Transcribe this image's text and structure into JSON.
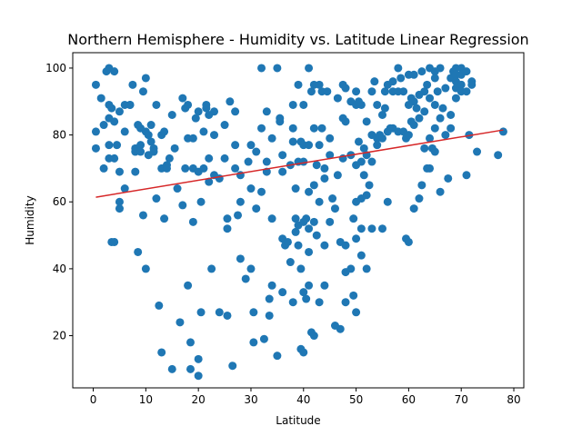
{
  "chart_data": {
    "type": "scatter",
    "title": "Northern Hemisphere - Humidity vs. Latitude Linear Regression",
    "xlabel": "Latitude",
    "ylabel": "Humidity",
    "xlim": [
      -3.9,
      81.9
    ],
    "ylim": [
      4.4,
      104.6
    ],
    "xticks": [
      0,
      10,
      20,
      30,
      40,
      50,
      60,
      70,
      80
    ],
    "yticks": [
      20,
      40,
      60,
      80,
      100
    ],
    "grid": false,
    "point_color": "#1f77b4",
    "line_color": "#d62728",
    "regression": {
      "x": [
        0.5,
        78.0
      ],
      "y": [
        61.4,
        81.5
      ]
    },
    "series": [
      {
        "points": [
          [
            0.5,
            95
          ],
          [
            0.5,
            81
          ],
          [
            0.5,
            76
          ],
          [
            1.5,
            91
          ],
          [
            2,
            83
          ],
          [
            2,
            70
          ],
          [
            2.5,
            99
          ],
          [
            3,
            89
          ],
          [
            3,
            85
          ],
          [
            3,
            77
          ],
          [
            3,
            73
          ],
          [
            3,
            100
          ],
          [
            3.5,
            48
          ],
          [
            3.5,
            88
          ],
          [
            4,
            84
          ],
          [
            4,
            73
          ],
          [
            4,
            99
          ],
          [
            4,
            48
          ],
          [
            4.5,
            77
          ],
          [
            5,
            69
          ],
          [
            5,
            87
          ],
          [
            5,
            60
          ],
          [
            5,
            58
          ],
          [
            6,
            89
          ],
          [
            6,
            81
          ],
          [
            6,
            64
          ],
          [
            7,
            89
          ],
          [
            7,
            89
          ],
          [
            7.5,
            95
          ],
          [
            8,
            69
          ],
          [
            8,
            75
          ],
          [
            8,
            76
          ],
          [
            8.5,
            83
          ],
          [
            8.5,
            45
          ],
          [
            9,
            77
          ],
          [
            9,
            82
          ],
          [
            9,
            75
          ],
          [
            9.5,
            93
          ],
          [
            9.5,
            56
          ],
          [
            10,
            97
          ],
          [
            10,
            40
          ],
          [
            10,
            81
          ],
          [
            10.5,
            80
          ],
          [
            10.5,
            74
          ],
          [
            11,
            83
          ],
          [
            11,
            78
          ],
          [
            11.5,
            76
          ],
          [
            11.5,
            75
          ],
          [
            12,
            89
          ],
          [
            12,
            61
          ],
          [
            12.5,
            29
          ],
          [
            13,
            70
          ],
          [
            13,
            80
          ],
          [
            13,
            15
          ],
          [
            13.5,
            55
          ],
          [
            13.5,
            81
          ],
          [
            14,
            71
          ],
          [
            14,
            70
          ],
          [
            14.5,
            73
          ],
          [
            15,
            86
          ],
          [
            15,
            10
          ],
          [
            15.5,
            76
          ],
          [
            16,
            64
          ],
          [
            16.5,
            24
          ],
          [
            17,
            91
          ],
          [
            17,
            59
          ],
          [
            17.5,
            88
          ],
          [
            17.5,
            70
          ],
          [
            18,
            89
          ],
          [
            18,
            79
          ],
          [
            18,
            35
          ],
          [
            18.5,
            18
          ],
          [
            18.5,
            10
          ],
          [
            19,
            79
          ],
          [
            19,
            70
          ],
          [
            19,
            54
          ],
          [
            19.5,
            85
          ],
          [
            20,
            13
          ],
          [
            20,
            8
          ],
          [
            20,
            87
          ],
          [
            20,
            69
          ],
          [
            20.5,
            60
          ],
          [
            20.5,
            27
          ],
          [
            21,
            81
          ],
          [
            21,
            70
          ],
          [
            21.5,
            89
          ],
          [
            21.5,
            88
          ],
          [
            22,
            86
          ],
          [
            22,
            73
          ],
          [
            22,
            66
          ],
          [
            22.5,
            40
          ],
          [
            23,
            87
          ],
          [
            23,
            68
          ],
          [
            23,
            80
          ],
          [
            24,
            67
          ],
          [
            24,
            27
          ],
          [
            25,
            73
          ],
          [
            25,
            83
          ],
          [
            25.5,
            26
          ],
          [
            25.5,
            52
          ],
          [
            25.5,
            55
          ],
          [
            26,
            90
          ],
          [
            26.5,
            11
          ],
          [
            27,
            87
          ],
          [
            27,
            77
          ],
          [
            27,
            70
          ],
          [
            27.5,
            56
          ],
          [
            28,
            43
          ],
          [
            28,
            68
          ],
          [
            28,
            60
          ],
          [
            29,
            37
          ],
          [
            29.5,
            72
          ],
          [
            30,
            64
          ],
          [
            30,
            40
          ],
          [
            30,
            77
          ],
          [
            30.5,
            18
          ],
          [
            30.5,
            27
          ],
          [
            31,
            58
          ],
          [
            31,
            75
          ],
          [
            32,
            100
          ],
          [
            32,
            82
          ],
          [
            32,
            63
          ],
          [
            32.5,
            19
          ],
          [
            33,
            72
          ],
          [
            33,
            69
          ],
          [
            33,
            87
          ],
          [
            33.5,
            31
          ],
          [
            33.5,
            26
          ],
          [
            34,
            55
          ],
          [
            34,
            79
          ],
          [
            34,
            35
          ],
          [
            35,
            14
          ],
          [
            35,
            100
          ],
          [
            35.5,
            84
          ],
          [
            35.5,
            85
          ],
          [
            36,
            49
          ],
          [
            36,
            33
          ],
          [
            36,
            69
          ],
          [
            36,
            74
          ],
          [
            36.5,
            47
          ],
          [
            37,
            48
          ],
          [
            37.5,
            71
          ],
          [
            37.5,
            42
          ],
          [
            38,
            89
          ],
          [
            38,
            82
          ],
          [
            38,
            78
          ],
          [
            38,
            30
          ],
          [
            38.5,
            64
          ],
          [
            38.5,
            55
          ],
          [
            38.5,
            51
          ],
          [
            39,
            95
          ],
          [
            39,
            72
          ],
          [
            39,
            53
          ],
          [
            39,
            47
          ],
          [
            39.5,
            78
          ],
          [
            39.5,
            40
          ],
          [
            39.5,
            16
          ],
          [
            40,
            54
          ],
          [
            40,
            33
          ],
          [
            40,
            89
          ],
          [
            40,
            77
          ],
          [
            40,
            72
          ],
          [
            40,
            15
          ],
          [
            40.5,
            55
          ],
          [
            40.5,
            31
          ],
          [
            41,
            100
          ],
          [
            41,
            77
          ],
          [
            41,
            63
          ],
          [
            41,
            52
          ],
          [
            41,
            45
          ],
          [
            41,
            35
          ],
          [
            41.5,
            93
          ],
          [
            41.5,
            21
          ],
          [
            42,
            95
          ],
          [
            42,
            82
          ],
          [
            42,
            65
          ],
          [
            42,
            54
          ],
          [
            42,
            20
          ],
          [
            42.5,
            71
          ],
          [
            42.5,
            50
          ],
          [
            43,
            95
          ],
          [
            43,
            77
          ],
          [
            43,
            60
          ],
          [
            43,
            30
          ],
          [
            43.5,
            93
          ],
          [
            43.5,
            82
          ],
          [
            44,
            47
          ],
          [
            44,
            35
          ],
          [
            44,
            70
          ],
          [
            44,
            67
          ],
          [
            44.5,
            93
          ],
          [
            45,
            79
          ],
          [
            45,
            54
          ],
          [
            45,
            74
          ],
          [
            45.5,
            61
          ],
          [
            46,
            58
          ],
          [
            46,
            23
          ],
          [
            46.5,
            91
          ],
          [
            46.5,
            68
          ],
          [
            47,
            22
          ],
          [
            47,
            48
          ],
          [
            47.5,
            95
          ],
          [
            47.5,
            85
          ],
          [
            47.5,
            73
          ],
          [
            48,
            94
          ],
          [
            48,
            84
          ],
          [
            48,
            47
          ],
          [
            48,
            39
          ],
          [
            48,
            30
          ],
          [
            49,
            90
          ],
          [
            49,
            74
          ],
          [
            49,
            40
          ],
          [
            49.5,
            32
          ],
          [
            49.5,
            55
          ],
          [
            50,
            89
          ],
          [
            50,
            71
          ],
          [
            50,
            93
          ],
          [
            50,
            27
          ],
          [
            50,
            49
          ],
          [
            50,
            60
          ],
          [
            50.5,
            90
          ],
          [
            50.5,
            78
          ],
          [
            51,
            89
          ],
          [
            51,
            72
          ],
          [
            51,
            61
          ],
          [
            51,
            52
          ],
          [
            51,
            44
          ],
          [
            51.5,
            76
          ],
          [
            51.5,
            68
          ],
          [
            52,
            84
          ],
          [
            52,
            40
          ],
          [
            52,
            74
          ],
          [
            52,
            62
          ],
          [
            52.5,
            65
          ],
          [
            53,
            93
          ],
          [
            53,
            80
          ],
          [
            53,
            72
          ],
          [
            53,
            52
          ],
          [
            53.5,
            96
          ],
          [
            54,
            89
          ],
          [
            54,
            79
          ],
          [
            54,
            77
          ],
          [
            54.5,
            80
          ],
          [
            55,
            86
          ],
          [
            55,
            79
          ],
          [
            55,
            52
          ],
          [
            55.5,
            93
          ],
          [
            55.5,
            88
          ],
          [
            56,
            95
          ],
          [
            56,
            81
          ],
          [
            56,
            60
          ],
          [
            56.5,
            82
          ],
          [
            57,
            96
          ],
          [
            57,
            82
          ],
          [
            57,
            93
          ],
          [
            58,
            100
          ],
          [
            58,
            93
          ],
          [
            58,
            81
          ],
          [
            58.5,
            97
          ],
          [
            59,
            93
          ],
          [
            59,
            81
          ],
          [
            59.5,
            79
          ],
          [
            59.5,
            49
          ],
          [
            60,
            98
          ],
          [
            60,
            89
          ],
          [
            60,
            80
          ],
          [
            60,
            48
          ],
          [
            60.5,
            91
          ],
          [
            60.5,
            84
          ],
          [
            61,
            90
          ],
          [
            61,
            83
          ],
          [
            61,
            58
          ],
          [
            61,
            98
          ],
          [
            61.5,
            88
          ],
          [
            62,
            92
          ],
          [
            62,
            61
          ],
          [
            62,
            85
          ],
          [
            62.5,
            99
          ],
          [
            62.5,
            65
          ],
          [
            63,
            93
          ],
          [
            63,
            87
          ],
          [
            63,
            76
          ],
          [
            63.5,
            70
          ],
          [
            63.5,
            95
          ],
          [
            64,
            100
          ],
          [
            64,
            91
          ],
          [
            64,
            79
          ],
          [
            64,
            70
          ],
          [
            64.5,
            76
          ],
          [
            65,
            99
          ],
          [
            65,
            97
          ],
          [
            65,
            89
          ],
          [
            65,
            82
          ],
          [
            65,
            75
          ],
          [
            65.5,
            93
          ],
          [
            66,
            100
          ],
          [
            66,
            85
          ],
          [
            66,
            63
          ],
          [
            66.5,
            88
          ],
          [
            67,
            94
          ],
          [
            67,
            80
          ],
          [
            67.5,
            67
          ],
          [
            68,
            97
          ],
          [
            68,
            86
          ],
          [
            68,
            82
          ],
          [
            68.5,
            99
          ],
          [
            69,
            100
          ],
          [
            69,
            98
          ],
          [
            69,
            96
          ],
          [
            69,
            94
          ],
          [
            69,
            91
          ],
          [
            70,
            100
          ],
          [
            70,
            98
          ],
          [
            70,
            95
          ],
          [
            70,
            93
          ],
          [
            71,
            99
          ],
          [
            71,
            93
          ],
          [
            71,
            68
          ],
          [
            71.5,
            80
          ],
          [
            72,
            96
          ],
          [
            72,
            95
          ],
          [
            73,
            75
          ],
          [
            77,
            74
          ],
          [
            78,
            81
          ]
        ]
      }
    ]
  }
}
